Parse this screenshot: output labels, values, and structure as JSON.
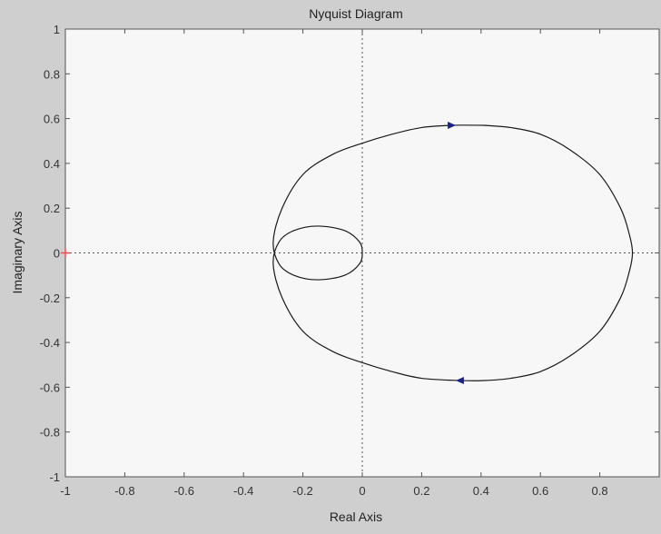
{
  "chart_data": {
    "type": "line",
    "title": "Nyquist Diagram",
    "xlabel": "Real Axis",
    "ylabel": "Imaginary Axis",
    "xlim": [
      -1,
      1
    ],
    "ylim": [
      -1,
      1
    ],
    "xticks": [
      {
        "value": -1,
        "label": "-1"
      },
      {
        "value": -0.8,
        "label": "-0.8"
      },
      {
        "value": -0.6,
        "label": "-0.6"
      },
      {
        "value": -0.4,
        "label": "-0.4"
      },
      {
        "value": -0.2,
        "label": "-0.2"
      },
      {
        "value": 0,
        "label": "0"
      },
      {
        "value": 0.2,
        "label": "0.2"
      },
      {
        "value": 0.4,
        "label": "0.4"
      },
      {
        "value": 0.6,
        "label": "0.6"
      },
      {
        "value": 0.8,
        "label": "0.8"
      }
    ],
    "yticks": [
      {
        "value": 1,
        "label": "1"
      },
      {
        "value": 0.8,
        "label": "0.8"
      },
      {
        "value": 0.6,
        "label": "0.6"
      },
      {
        "value": 0.4,
        "label": "0.4"
      },
      {
        "value": 0.2,
        "label": "0.2"
      },
      {
        "value": 0,
        "label": "0"
      },
      {
        "value": -0.2,
        "label": "-0.2"
      },
      {
        "value": -0.4,
        "label": "-0.4"
      },
      {
        "value": -0.6,
        "label": "-0.6"
      },
      {
        "value": -0.8,
        "label": "-0.8"
      },
      {
        "value": -1,
        "label": "-1"
      }
    ],
    "grid": false,
    "critical_point": {
      "x": -1,
      "y": 0,
      "marker": "+",
      "color": "#ff4d4d"
    },
    "curve_color": "#1a1a1a",
    "arrow_color": "#1a237e",
    "reference_line_color": "#555555",
    "series": [
      {
        "points": [
          [
            0.41,
            0.57
          ],
          [
            0.5,
            0.56
          ],
          [
            0.6,
            0.53
          ],
          [
            0.7,
            0.46
          ],
          [
            0.8,
            0.35
          ],
          [
            0.87,
            0.2
          ],
          [
            0.9,
            0.08
          ],
          [
            0.91,
            0
          ],
          [
            0.9,
            -0.08
          ],
          [
            0.87,
            -0.2
          ],
          [
            0.8,
            -0.35
          ],
          [
            0.7,
            -0.46
          ],
          [
            0.6,
            -0.53
          ],
          [
            0.5,
            -0.56
          ],
          [
            0.41,
            -0.57
          ],
          [
            0.33,
            -0.57
          ],
          [
            0.2,
            -0.56
          ],
          [
            0.1,
            -0.53
          ],
          [
            0,
            -0.49
          ],
          [
            -0.1,
            -0.44
          ],
          [
            -0.2,
            -0.35
          ],
          [
            -0.27,
            -0.2
          ],
          [
            -0.3,
            -0.05
          ],
          [
            -0.28,
            0.05
          ],
          [
            -0.23,
            0.1
          ],
          [
            -0.15,
            0.12
          ],
          [
            -0.06,
            0.1
          ],
          [
            -0.01,
            0.05
          ],
          [
            0,
            0
          ],
          [
            -0.01,
            -0.05
          ],
          [
            -0.06,
            -0.1
          ],
          [
            -0.15,
            -0.12
          ],
          [
            -0.23,
            -0.1
          ],
          [
            -0.28,
            -0.05
          ],
          [
            -0.3,
            0.05
          ],
          [
            -0.27,
            0.2
          ],
          [
            -0.2,
            0.35
          ],
          [
            -0.1,
            0.44
          ],
          [
            0,
            0.49
          ],
          [
            0.1,
            0.53
          ],
          [
            0.2,
            0.56
          ],
          [
            0.3,
            0.57
          ],
          [
            0.41,
            0.57
          ]
        ],
        "arrows": [
          {
            "x": 0.3,
            "y": 0.57,
            "direction": "right"
          },
          {
            "x": 0.33,
            "y": -0.57,
            "direction": "left"
          }
        ]
      }
    ]
  }
}
